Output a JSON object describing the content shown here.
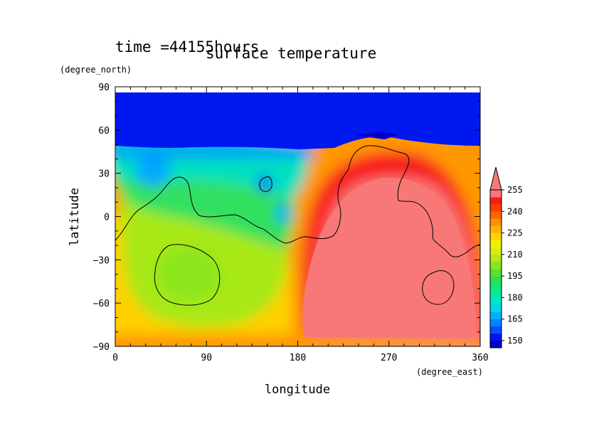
{
  "chart_data": {
    "type": "heatmap",
    "time_label": "time =44155hours",
    "title": "surface temperature",
    "xlabel": "longitude",
    "ylabel": "latitude",
    "x_unit": "(degree_east)",
    "y_unit": "(degree_north)",
    "xlim": [
      0,
      360
    ],
    "ylim": [
      -90,
      90
    ],
    "x_ticks": [
      0,
      90,
      180,
      270,
      360
    ],
    "y_ticks": [
      -90,
      -60,
      -30,
      0,
      30,
      60,
      90
    ],
    "colorbar": {
      "levels": [
        145,
        150,
        155,
        160,
        165,
        170,
        175,
        180,
        185,
        190,
        195,
        200,
        205,
        210,
        215,
        220,
        225,
        230,
        235,
        240,
        245,
        250,
        255
      ],
      "labels": [
        150,
        165,
        180,
        195,
        210,
        225,
        240,
        255
      ],
      "colors": [
        "#0000cc",
        "#0014f0",
        "#0050ff",
        "#0084ff",
        "#00b0ff",
        "#00d2f0",
        "#00e6c8",
        "#00eba0",
        "#10e678",
        "#30e050",
        "#5ce030",
        "#8ce61e",
        "#b4ea14",
        "#d4ee10",
        "#f0f000",
        "#ffd400",
        "#ffb400",
        "#ff9000",
        "#ff6400",
        "#ff3c00",
        "#f81e1e",
        "#f87878"
      ],
      "extend": "max"
    }
  }
}
